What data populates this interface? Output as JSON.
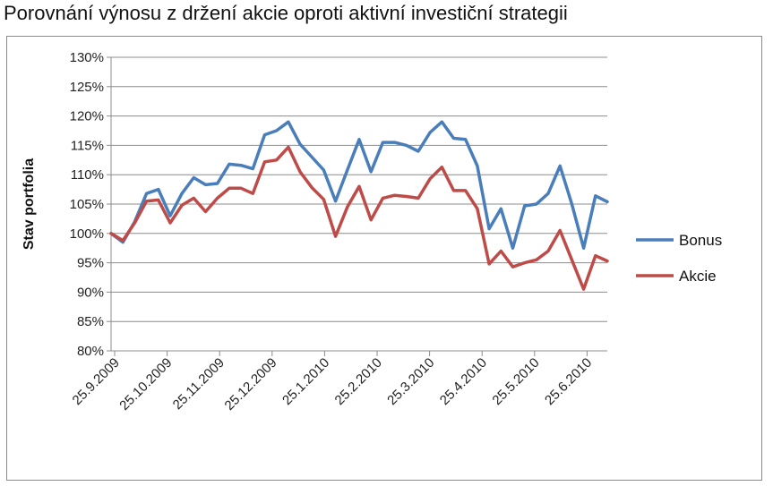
{
  "title": "Porovnání výnosu z držení akcie oproti aktivní investiční strategii",
  "chart_data": {
    "type": "line",
    "title": "Porovnání výnosu z držení akcie oproti aktivní investiční strategii",
    "ylabel": "Stav portfolia",
    "xlabel": "",
    "ylim": [
      0.8,
      1.3
    ],
    "y_ticks": [
      "80%",
      "85%",
      "90%",
      "95%",
      "100%",
      "105%",
      "110%",
      "115%",
      "120%",
      "125%",
      "130%"
    ],
    "x_ticks": [
      "25.9.2009",
      "25.10.2009",
      "25.11.2009",
      "25.12.2009",
      "25.1.2010",
      "25.2.2010",
      "25.3.2010",
      "25.4.2010",
      "25.5.2010",
      "25.6.2010"
    ],
    "grid": true,
    "legend_position": "right",
    "series": [
      {
        "name": "Bonus",
        "color": "#4a7ebb",
        "values": [
          1.0,
          0.985,
          1.02,
          1.068,
          1.075,
          1.03,
          1.068,
          1.095,
          1.083,
          1.085,
          1.118,
          1.116,
          1.11,
          1.168,
          1.175,
          1.19,
          1.152,
          1.13,
          1.108,
          1.055,
          1.108,
          1.16,
          1.105,
          1.155,
          1.155,
          1.15,
          1.14,
          1.172,
          1.19,
          1.162,
          1.16,
          1.115,
          1.008,
          1.042,
          0.975,
          1.047,
          1.05,
          1.068,
          1.115,
          1.05,
          0.975,
          1.064,
          1.054
        ]
      },
      {
        "name": "Akcie",
        "color": "#be4b48",
        "values": [
          1.0,
          0.988,
          1.018,
          1.055,
          1.057,
          1.018,
          1.048,
          1.06,
          1.037,
          1.06,
          1.077,
          1.077,
          1.068,
          1.122,
          1.125,
          1.147,
          1.105,
          1.078,
          1.058,
          0.995,
          1.045,
          1.08,
          1.023,
          1.06,
          1.065,
          1.063,
          1.06,
          1.093,
          1.113,
          1.073,
          1.073,
          1.042,
          0.948,
          0.97,
          0.943,
          0.95,
          0.955,
          0.97,
          1.005,
          0.955,
          0.905,
          0.962,
          0.953
        ]
      }
    ]
  }
}
